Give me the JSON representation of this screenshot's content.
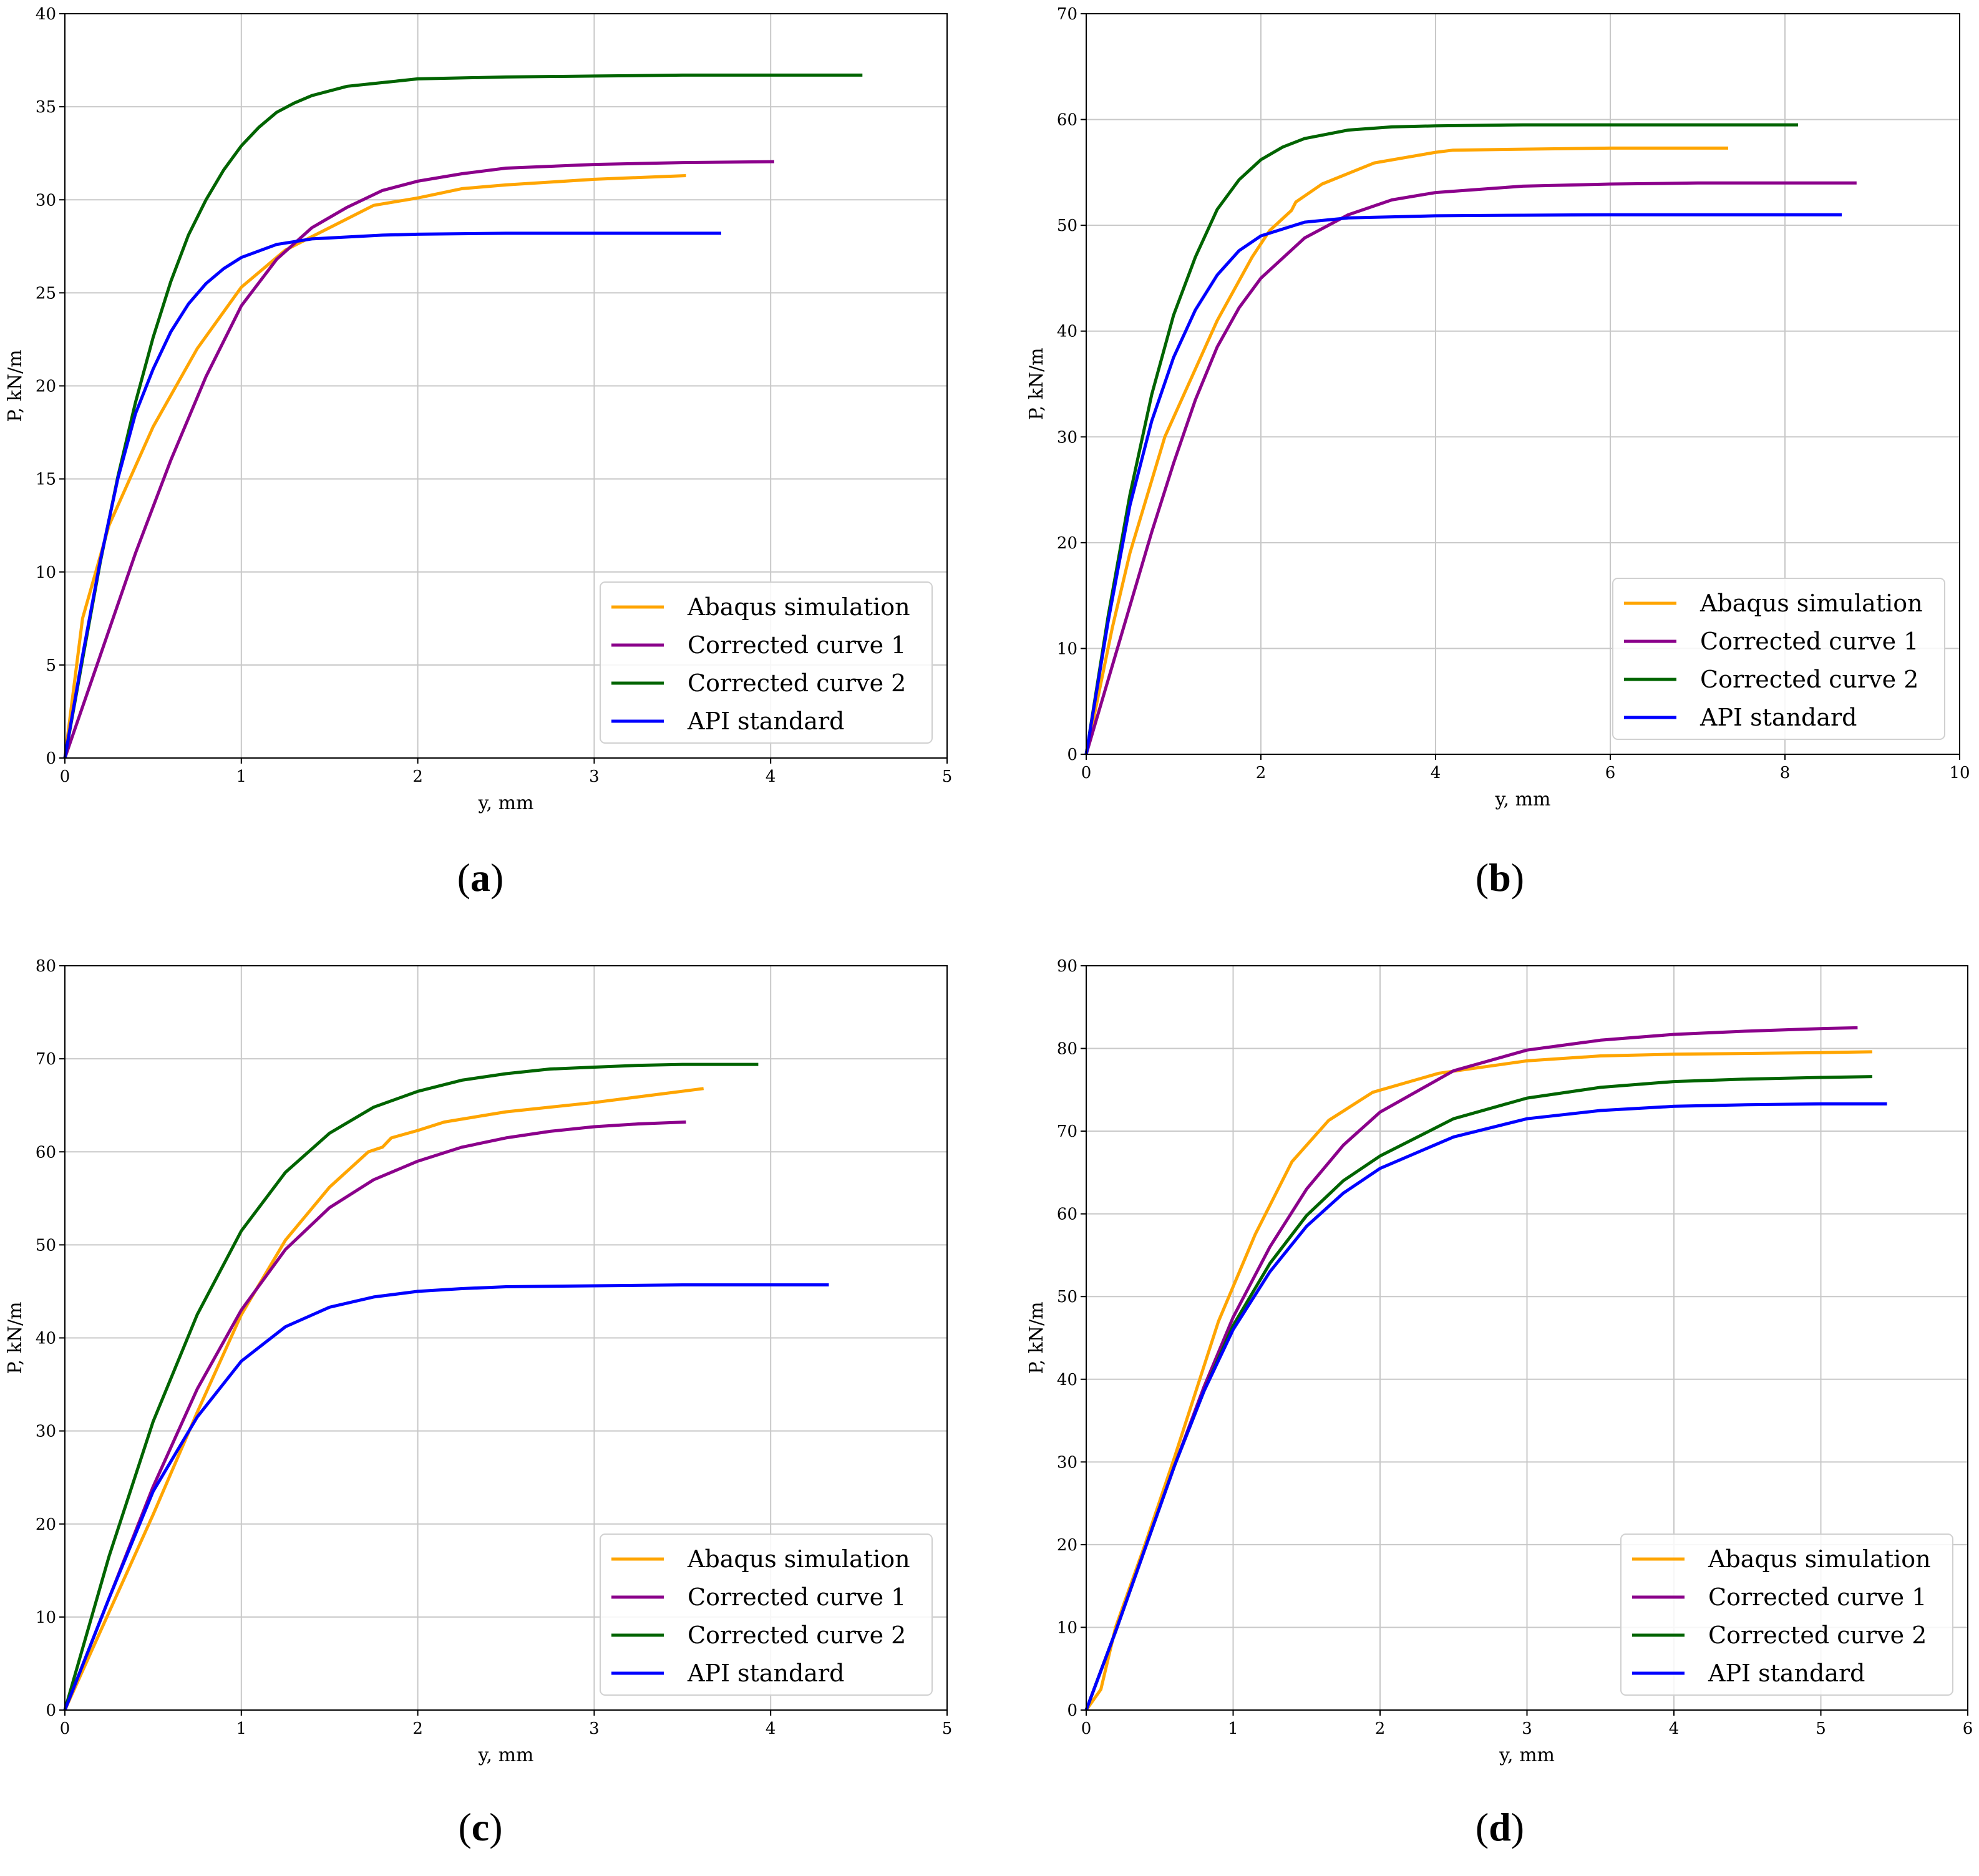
{
  "chart_data": [
    {
      "type": "line",
      "panel_label": "(a)",
      "panel_letter": "a",
      "xlabel": "y, mm",
      "ylabel": "P, kN/m",
      "xlim": [
        0,
        5
      ],
      "ylim": [
        0,
        40
      ],
      "xticks": [
        0,
        1,
        2,
        3,
        4,
        5
      ],
      "yticks": [
        0,
        5,
        10,
        15,
        20,
        25,
        30,
        35,
        40
      ],
      "xtick_labels": [
        "0",
        "1",
        "2",
        "3",
        "4",
        "5"
      ],
      "ytick_labels": [
        "0",
        "5",
        "10",
        "15",
        "20",
        "25",
        "30",
        "35",
        "40"
      ],
      "grid": true,
      "legend_position": "lower-right",
      "series": [
        {
          "name": "Abaqus simulation",
          "color": "#FFA500",
          "x": [
            0,
            0.1,
            0.25,
            0.5,
            0.75,
            1.0,
            1.25,
            1.5,
            1.75,
            2.0,
            2.25,
            2.5,
            3.0,
            3.52
          ],
          "y": [
            0,
            7.5,
            12.5,
            17.8,
            22.0,
            25.3,
            27.3,
            28.5,
            29.7,
            30.1,
            30.6,
            30.8,
            31.1,
            31.3
          ]
        },
        {
          "name": "Corrected curve 1",
          "color": "#8B008B",
          "x": [
            0,
            0.2,
            0.4,
            0.6,
            0.8,
            1.0,
            1.2,
            1.4,
            1.6,
            1.8,
            2.0,
            2.25,
            2.5,
            3.0,
            3.5,
            4.02
          ],
          "y": [
            0,
            5.5,
            11.0,
            16.0,
            20.5,
            24.3,
            26.8,
            28.5,
            29.6,
            30.5,
            31.0,
            31.4,
            31.7,
            31.9,
            32.0,
            32.05
          ]
        },
        {
          "name": "Corrected curve 2",
          "color": "#006400",
          "x": [
            0,
            0.1,
            0.2,
            0.3,
            0.4,
            0.5,
            0.6,
            0.7,
            0.8,
            0.9,
            1.0,
            1.1,
            1.2,
            1.3,
            1.4,
            1.6,
            1.8,
            2.0,
            2.5,
            3.0,
            3.5,
            4.0,
            4.52
          ],
          "y": [
            0,
            5.3,
            10.5,
            15.1,
            19.1,
            22.6,
            25.6,
            28.1,
            30.0,
            31.6,
            32.9,
            33.9,
            34.7,
            35.2,
            35.6,
            36.1,
            36.3,
            36.5,
            36.6,
            36.65,
            36.7,
            36.7,
            36.7
          ]
        },
        {
          "name": "API standard",
          "color": "#0000FF",
          "x": [
            0,
            0.1,
            0.2,
            0.3,
            0.4,
            0.5,
            0.6,
            0.7,
            0.8,
            0.9,
            1.0,
            1.2,
            1.4,
            1.6,
            1.8,
            2.0,
            2.5,
            3.0,
            3.72
          ],
          "y": [
            0,
            5.5,
            10.6,
            15.0,
            18.5,
            20.9,
            22.9,
            24.4,
            25.5,
            26.3,
            26.9,
            27.6,
            27.9,
            28.0,
            28.1,
            28.15,
            28.2,
            28.2,
            28.2
          ]
        }
      ]
    },
    {
      "type": "line",
      "panel_label": "(b)",
      "panel_letter": "b",
      "xlabel": "y, mm",
      "ylabel": "P, kN/m",
      "xlim": [
        0,
        10
      ],
      "ylim": [
        0,
        70
      ],
      "xticks": [
        0,
        2,
        4,
        6,
        8,
        10
      ],
      "yticks": [
        0,
        10,
        20,
        30,
        40,
        50,
        60,
        70
      ],
      "xtick_labels": [
        "0",
        "2",
        "4",
        "6",
        "8",
        "10"
      ],
      "ytick_labels": [
        "0",
        "10",
        "20",
        "30",
        "40",
        "50",
        "60",
        "70"
      ],
      "grid": true,
      "legend_position": "lower-right",
      "series": [
        {
          "name": "Abaqus simulation",
          "color": "#FFA500",
          "x": [
            0,
            0.3,
            0.5,
            0.9,
            1.5,
            1.9,
            2.1,
            2.35,
            2.4,
            2.7,
            3.3,
            4.0,
            4.2,
            5.0,
            6.0,
            7.35
          ],
          "y": [
            0,
            12.0,
            19.0,
            30.0,
            41.0,
            47.0,
            49.5,
            51.4,
            52.2,
            53.9,
            55.9,
            56.9,
            57.1,
            57.2,
            57.3,
            57.3
          ]
        },
        {
          "name": "Corrected curve 1",
          "color": "#8B008B",
          "x": [
            0,
            0.25,
            0.5,
            0.75,
            1.0,
            1.25,
            1.5,
            1.75,
            2.0,
            2.5,
            3.0,
            3.5,
            4.0,
            5.0,
            6.0,
            7.0,
            8.0,
            8.82
          ],
          "y": [
            0,
            7.0,
            14.0,
            21.0,
            27.5,
            33.5,
            38.5,
            42.2,
            45.0,
            48.8,
            51.0,
            52.4,
            53.1,
            53.7,
            53.9,
            54.0,
            54.0,
            54.0
          ]
        },
        {
          "name": "Corrected curve 2",
          "color": "#006400",
          "x": [
            0,
            0.25,
            0.5,
            0.75,
            1.0,
            1.25,
            1.5,
            1.75,
            2.0,
            2.25,
            2.5,
            3.0,
            3.5,
            4.0,
            5.0,
            6.0,
            7.0,
            8.15
          ],
          "y": [
            0,
            13.0,
            24.5,
            34.0,
            41.5,
            47.0,
            51.5,
            54.3,
            56.2,
            57.4,
            58.2,
            59.0,
            59.3,
            59.4,
            59.5,
            59.5,
            59.5,
            59.5
          ]
        },
        {
          "name": "API standard",
          "color": "#0000FF",
          "x": [
            0,
            0.25,
            0.5,
            0.75,
            1.0,
            1.25,
            1.5,
            1.75,
            2.0,
            2.5,
            3.0,
            3.5,
            4.0,
            5.0,
            6.0,
            7.0,
            8.65
          ],
          "y": [
            0,
            12.5,
            23.5,
            31.5,
            37.5,
            42.0,
            45.3,
            47.6,
            49.0,
            50.3,
            50.7,
            50.8,
            50.9,
            50.95,
            51.0,
            51.0,
            51.0
          ]
        }
      ]
    },
    {
      "type": "line",
      "panel_label": "(c)",
      "panel_letter": "c",
      "xlabel": "y, mm",
      "ylabel": "P, kN/m",
      "xlim": [
        0,
        5
      ],
      "ylim": [
        0,
        80
      ],
      "xticks": [
        0,
        1,
        2,
        3,
        4,
        5
      ],
      "yticks": [
        0,
        10,
        20,
        30,
        40,
        50,
        60,
        70,
        80
      ],
      "xtick_labels": [
        "0",
        "1",
        "2",
        "3",
        "4",
        "5"
      ],
      "ytick_labels": [
        "0",
        "10",
        "20",
        "30",
        "40",
        "50",
        "60",
        "70",
        "80"
      ],
      "grid": true,
      "legend_position": "lower-right",
      "series": [
        {
          "name": "Abaqus simulation",
          "color": "#FFA500",
          "x": [
            0,
            0.25,
            0.5,
            0.75,
            1.0,
            1.25,
            1.5,
            1.72,
            1.8,
            1.85,
            2.0,
            2.15,
            2.5,
            3.0,
            3.62
          ],
          "y": [
            0,
            10.5,
            21.0,
            32.0,
            42.5,
            50.5,
            56.2,
            60.0,
            60.5,
            61.5,
            62.3,
            63.2,
            64.3,
            65.3,
            66.8
          ]
        },
        {
          "name": "Corrected curve 1",
          "color": "#8B008B",
          "x": [
            0,
            0.25,
            0.5,
            0.75,
            1.0,
            1.25,
            1.5,
            1.75,
            2.0,
            2.25,
            2.5,
            2.75,
            3.0,
            3.25,
            3.52
          ],
          "y": [
            0,
            12.0,
            24.0,
            34.5,
            43.0,
            49.5,
            54.0,
            57.0,
            59.0,
            60.5,
            61.5,
            62.2,
            62.7,
            63.0,
            63.2
          ]
        },
        {
          "name": "Corrected curve 2",
          "color": "#006400",
          "x": [
            0,
            0.25,
            0.5,
            0.75,
            1.0,
            1.25,
            1.5,
            1.75,
            2.0,
            2.25,
            2.5,
            2.75,
            3.0,
            3.25,
            3.5,
            3.93
          ],
          "y": [
            0,
            16.5,
            31.0,
            42.5,
            51.5,
            57.8,
            62.0,
            64.8,
            66.5,
            67.7,
            68.4,
            68.9,
            69.1,
            69.3,
            69.4,
            69.4
          ]
        },
        {
          "name": "API standard",
          "color": "#0000FF",
          "x": [
            0,
            0.25,
            0.5,
            0.75,
            1.0,
            1.25,
            1.5,
            1.75,
            2.0,
            2.25,
            2.5,
            3.0,
            3.5,
            4.0,
            4.33
          ],
          "y": [
            0,
            12.0,
            23.5,
            31.5,
            37.5,
            41.2,
            43.3,
            44.4,
            45.0,
            45.3,
            45.5,
            45.6,
            45.7,
            45.7,
            45.7
          ]
        }
      ]
    },
    {
      "type": "line",
      "panel_label": "(d)",
      "panel_letter": "d",
      "xlabel": "y, mm",
      "ylabel": "P, kN/m",
      "xlim": [
        0,
        6
      ],
      "ylim": [
        0,
        90
      ],
      "xticks": [
        0,
        1,
        2,
        3,
        4,
        5,
        6
      ],
      "yticks": [
        0,
        10,
        20,
        30,
        40,
        50,
        60,
        70,
        80,
        90
      ],
      "xtick_labels": [
        "0",
        "1",
        "2",
        "3",
        "4",
        "5",
        "6"
      ],
      "ytick_labels": [
        "0",
        "10",
        "20",
        "30",
        "40",
        "50",
        "60",
        "70",
        "80",
        "90"
      ],
      "grid": true,
      "legend_position": "lower-right",
      "series": [
        {
          "name": "Abaqus simulation",
          "color": "#FFA500",
          "x": [
            0,
            0.1,
            0.2,
            0.4,
            0.6,
            0.9,
            1.15,
            1.4,
            1.65,
            1.95,
            2.4,
            3.0,
            3.5,
            4.0,
            5.0,
            5.35
          ],
          "y": [
            0,
            2.5,
            10.0,
            20.0,
            30.5,
            47.0,
            57.5,
            66.3,
            71.3,
            74.7,
            77.0,
            78.5,
            79.1,
            79.3,
            79.5,
            79.6
          ]
        },
        {
          "name": "Corrected curve 1",
          "color": "#8B008B",
          "x": [
            0,
            0.2,
            0.4,
            0.6,
            0.8,
            1.0,
            1.25,
            1.5,
            1.75,
            2.0,
            2.5,
            3.0,
            3.5,
            4.0,
            4.5,
            5.0,
            5.25
          ],
          "y": [
            0,
            9.5,
            19.5,
            29.5,
            39.0,
            47.5,
            56.0,
            63.0,
            68.3,
            72.3,
            77.3,
            79.8,
            81.0,
            81.7,
            82.1,
            82.4,
            82.5
          ]
        },
        {
          "name": "Corrected curve 2",
          "color": "#006400",
          "x": [
            0,
            0.2,
            0.4,
            0.6,
            0.8,
            1.0,
            1.25,
            1.5,
            1.75,
            2.0,
            2.5,
            3.0,
            3.5,
            4.0,
            4.5,
            5.0,
            5.35
          ],
          "y": [
            0,
            9.5,
            19.5,
            29.5,
            38.5,
            46.5,
            54.0,
            59.8,
            64.0,
            67.0,
            71.5,
            74.0,
            75.3,
            76.0,
            76.3,
            76.5,
            76.6
          ]
        },
        {
          "name": "API standard",
          "color": "#0000FF",
          "x": [
            0,
            0.2,
            0.4,
            0.6,
            0.8,
            1.0,
            1.25,
            1.5,
            1.75,
            2.0,
            2.5,
            3.0,
            3.5,
            4.0,
            4.5,
            5.0,
            5.45
          ],
          "y": [
            0,
            9.5,
            19.5,
            29.5,
            38.5,
            46.0,
            53.0,
            58.5,
            62.5,
            65.5,
            69.3,
            71.5,
            72.5,
            73.0,
            73.2,
            73.3,
            73.3
          ]
        }
      ]
    }
  ]
}
